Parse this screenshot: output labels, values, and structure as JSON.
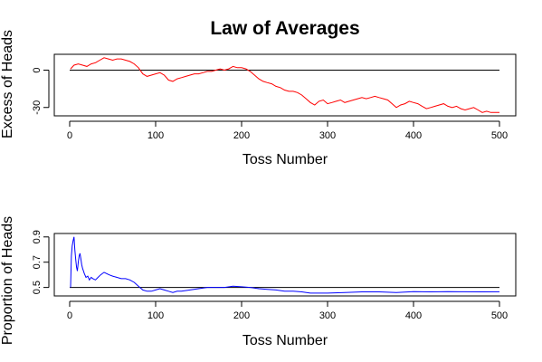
{
  "title": "Law of Averages",
  "chart_data": [
    {
      "type": "line",
      "ylabel": "Excess of Heads",
      "xlabel": "Toss Number",
      "xlim": [
        0,
        500
      ],
      "ylim": [
        -36,
        12
      ],
      "x_ticks": [
        0,
        100,
        200,
        300,
        400,
        500
      ],
      "y_ticks": [
        -30,
        0
      ],
      "reference_line": 0,
      "series": [
        {
          "color": "#ff0000",
          "points": [
            [
              1,
              1
            ],
            [
              5,
              4
            ],
            [
              10,
              5
            ],
            [
              15,
              4
            ],
            [
              20,
              3
            ],
            [
              25,
              5
            ],
            [
              30,
              6
            ],
            [
              35,
              8
            ],
            [
              40,
              10
            ],
            [
              45,
              9
            ],
            [
              50,
              8
            ],
            [
              55,
              9
            ],
            [
              60,
              9
            ],
            [
              65,
              8
            ],
            [
              70,
              7
            ],
            [
              75,
              5
            ],
            [
              80,
              2
            ],
            [
              85,
              -3
            ],
            [
              90,
              -5
            ],
            [
              95,
              -4
            ],
            [
              100,
              -3
            ],
            [
              105,
              -2
            ],
            [
              110,
              -4
            ],
            [
              115,
              -8
            ],
            [
              120,
              -9
            ],
            [
              125,
              -7
            ],
            [
              130,
              -6
            ],
            [
              135,
              -5
            ],
            [
              140,
              -4
            ],
            [
              145,
              -3
            ],
            [
              150,
              -3
            ],
            [
              155,
              -2
            ],
            [
              160,
              -1
            ],
            [
              165,
              -1
            ],
            [
              170,
              0
            ],
            [
              175,
              1
            ],
            [
              180,
              0
            ],
            [
              185,
              1
            ],
            [
              190,
              3
            ],
            [
              195,
              2
            ],
            [
              200,
              2
            ],
            [
              205,
              1
            ],
            [
              210,
              -1
            ],
            [
              215,
              -4
            ],
            [
              220,
              -7
            ],
            [
              225,
              -9
            ],
            [
              230,
              -10
            ],
            [
              235,
              -11
            ],
            [
              240,
              -13
            ],
            [
              245,
              -14
            ],
            [
              250,
              -16
            ],
            [
              255,
              -17
            ],
            [
              260,
              -17
            ],
            [
              265,
              -18
            ],
            [
              270,
              -20
            ],
            [
              275,
              -23
            ],
            [
              280,
              -26
            ],
            [
              285,
              -28
            ],
            [
              290,
              -25
            ],
            [
              295,
              -24
            ],
            [
              300,
              -27
            ],
            [
              305,
              -26
            ],
            [
              310,
              -25
            ],
            [
              315,
              -24
            ],
            [
              320,
              -26
            ],
            [
              325,
              -25
            ],
            [
              330,
              -24
            ],
            [
              335,
              -23
            ],
            [
              340,
              -22
            ],
            [
              345,
              -23
            ],
            [
              350,
              -22
            ],
            [
              355,
              -21
            ],
            [
              360,
              -22
            ],
            [
              365,
              -23
            ],
            [
              370,
              -24
            ],
            [
              375,
              -27
            ],
            [
              380,
              -30
            ],
            [
              385,
              -28
            ],
            [
              390,
              -27
            ],
            [
              395,
              -25
            ],
            [
              400,
              -26
            ],
            [
              405,
              -27
            ],
            [
              410,
              -29
            ],
            [
              415,
              -31
            ],
            [
              420,
              -30
            ],
            [
              425,
              -29
            ],
            [
              430,
              -28
            ],
            [
              435,
              -27
            ],
            [
              440,
              -29
            ],
            [
              445,
              -30
            ],
            [
              450,
              -29
            ],
            [
              455,
              -31
            ],
            [
              460,
              -32
            ],
            [
              465,
              -31
            ],
            [
              470,
              -30
            ],
            [
              475,
              -32
            ],
            [
              480,
              -34
            ],
            [
              485,
              -33
            ],
            [
              490,
              -34
            ],
            [
              495,
              -34
            ],
            [
              500,
              -34
            ]
          ]
        }
      ]
    },
    {
      "type": "line",
      "ylabel": "Proportion of Heads",
      "xlabel": "Toss Number",
      "xlim": [
        0,
        500
      ],
      "ylim": [
        0.44,
        0.92
      ],
      "x_ticks": [
        0,
        100,
        200,
        300,
        400,
        500
      ],
      "y_ticks": [
        0.5,
        0.7,
        0.9
      ],
      "reference_line": 0.5,
      "series": [
        {
          "color": "#0000ff",
          "points": [
            [
              1,
              0.5
            ],
            [
              2,
              0.75
            ],
            [
              3,
              0.83
            ],
            [
              4,
              0.87
            ],
            [
              5,
              0.9
            ],
            [
              6,
              0.8
            ],
            [
              7,
              0.72
            ],
            [
              8,
              0.66
            ],
            [
              9,
              0.63
            ],
            [
              10,
              0.7
            ],
            [
              11,
              0.75
            ],
            [
              12,
              0.77
            ],
            [
              13,
              0.73
            ],
            [
              14,
              0.68
            ],
            [
              15,
              0.65
            ],
            [
              17,
              0.61
            ],
            [
              19,
              0.58
            ],
            [
              21,
              0.59
            ],
            [
              23,
              0.56
            ],
            [
              25,
              0.58
            ],
            [
              27,
              0.57
            ],
            [
              30,
              0.56
            ],
            [
              33,
              0.58
            ],
            [
              36,
              0.6
            ],
            [
              40,
              0.62
            ],
            [
              43,
              0.61
            ],
            [
              46,
              0.6
            ],
            [
              50,
              0.59
            ],
            [
              55,
              0.58
            ],
            [
              60,
              0.57
            ],
            [
              65,
              0.57
            ],
            [
              70,
              0.56
            ],
            [
              75,
              0.54
            ],
            [
              80,
              0.51
            ],
            [
              85,
              0.48
            ],
            [
              90,
              0.47
            ],
            [
              95,
              0.47
            ],
            [
              100,
              0.48
            ],
            [
              105,
              0.49
            ],
            [
              110,
              0.48
            ],
            [
              115,
              0.47
            ],
            [
              120,
              0.46
            ],
            [
              125,
              0.47
            ],
            [
              130,
              0.47
            ],
            [
              140,
              0.48
            ],
            [
              150,
              0.49
            ],
            [
              160,
              0.5
            ],
            [
              170,
              0.5
            ],
            [
              180,
              0.5
            ],
            [
              190,
              0.51
            ],
            [
              200,
              0.505
            ],
            [
              210,
              0.5
            ],
            [
              220,
              0.49
            ],
            [
              230,
              0.485
            ],
            [
              240,
              0.48
            ],
            [
              250,
              0.47
            ],
            [
              260,
              0.47
            ],
            [
              270,
              0.465
            ],
            [
              280,
              0.455
            ],
            [
              290,
              0.455
            ],
            [
              300,
              0.455
            ],
            [
              320,
              0.46
            ],
            [
              340,
              0.465
            ],
            [
              360,
              0.465
            ],
            [
              380,
              0.46
            ],
            [
              400,
              0.467
            ],
            [
              420,
              0.465
            ],
            [
              440,
              0.467
            ],
            [
              460,
              0.466
            ],
            [
              480,
              0.465
            ],
            [
              500,
              0.466
            ]
          ]
        }
      ]
    }
  ]
}
